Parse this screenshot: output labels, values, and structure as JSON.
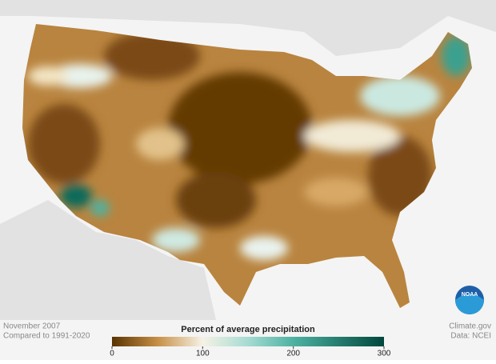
{
  "map": {
    "caption": {
      "date": "November 2007",
      "baseline": "Compared to 1991-2020"
    },
    "legend": {
      "title": "Percent of average precipitation",
      "range": [
        0,
        300
      ],
      "ticks": [
        0,
        100,
        200,
        300
      ],
      "colors": [
        {
          "value": 0,
          "color": "#5a3300"
        },
        {
          "value": 50,
          "color": "#c68f45"
        },
        {
          "value": 100,
          "color": "#f6f2e6"
        },
        {
          "value": 150,
          "color": "#a6dbd2"
        },
        {
          "value": 200,
          "color": "#4db2a2"
        },
        {
          "value": 300,
          "color": "#00473c"
        }
      ]
    },
    "credits": {
      "source": "Climate.gov",
      "data": "Data: NCEI"
    },
    "logo": "NOAA"
  }
}
